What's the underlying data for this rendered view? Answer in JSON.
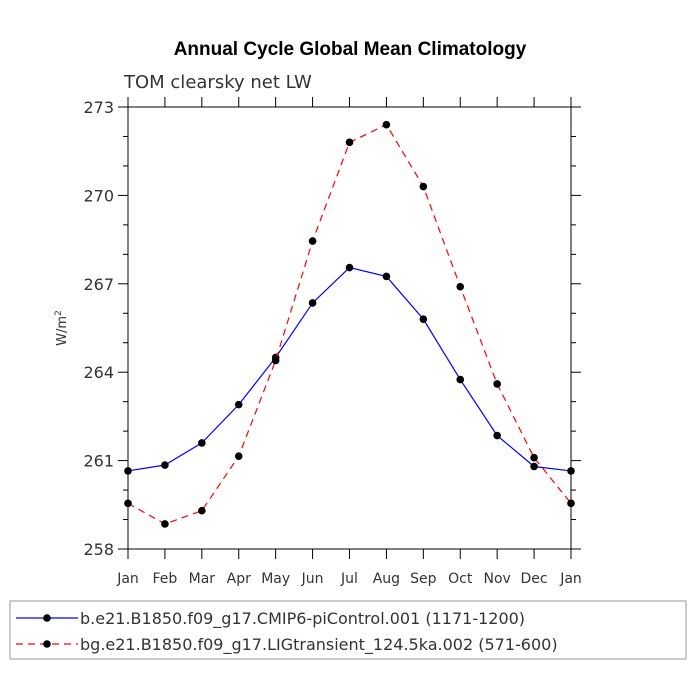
{
  "chart_data": {
    "type": "line",
    "title": "Annual Cycle Global Mean Climatology",
    "subtitle": "TOM clearsky net LW",
    "xlabel": "",
    "ylabel": "W/m",
    "ylabel_superscript": "2",
    "categories": [
      "Jan",
      "Feb",
      "Mar",
      "Apr",
      "May",
      "Jun",
      "Jul",
      "Aug",
      "Sep",
      "Oct",
      "Nov",
      "Dec",
      "Jan"
    ],
    "ylim": [
      258,
      273
    ],
    "yticks": [
      "258",
      "261",
      "264",
      "267",
      "270",
      "273"
    ],
    "legend_position": "bottom",
    "series": [
      {
        "name": "b.e21.B1850.f09_g17.CMIP6-piControl.001 (1171-1200)",
        "color": "#0000ff",
        "dash": "solid",
        "values": [
          260.65,
          260.85,
          261.6,
          262.9,
          264.5,
          266.35,
          267.55,
          267.25,
          265.8,
          263.75,
          261.85,
          260.8,
          260.65
        ]
      },
      {
        "name": "bg.e21.B1850.f09_g17.LIGtransient_124.5ka.002 (571-600)",
        "color": "#ff0000",
        "dash": "dashed",
        "values": [
          259.55,
          258.85,
          259.3,
          261.15,
          264.4,
          268.45,
          271.8,
          272.4,
          270.3,
          266.9,
          263.6,
          261.1,
          259.55
        ]
      }
    ]
  }
}
